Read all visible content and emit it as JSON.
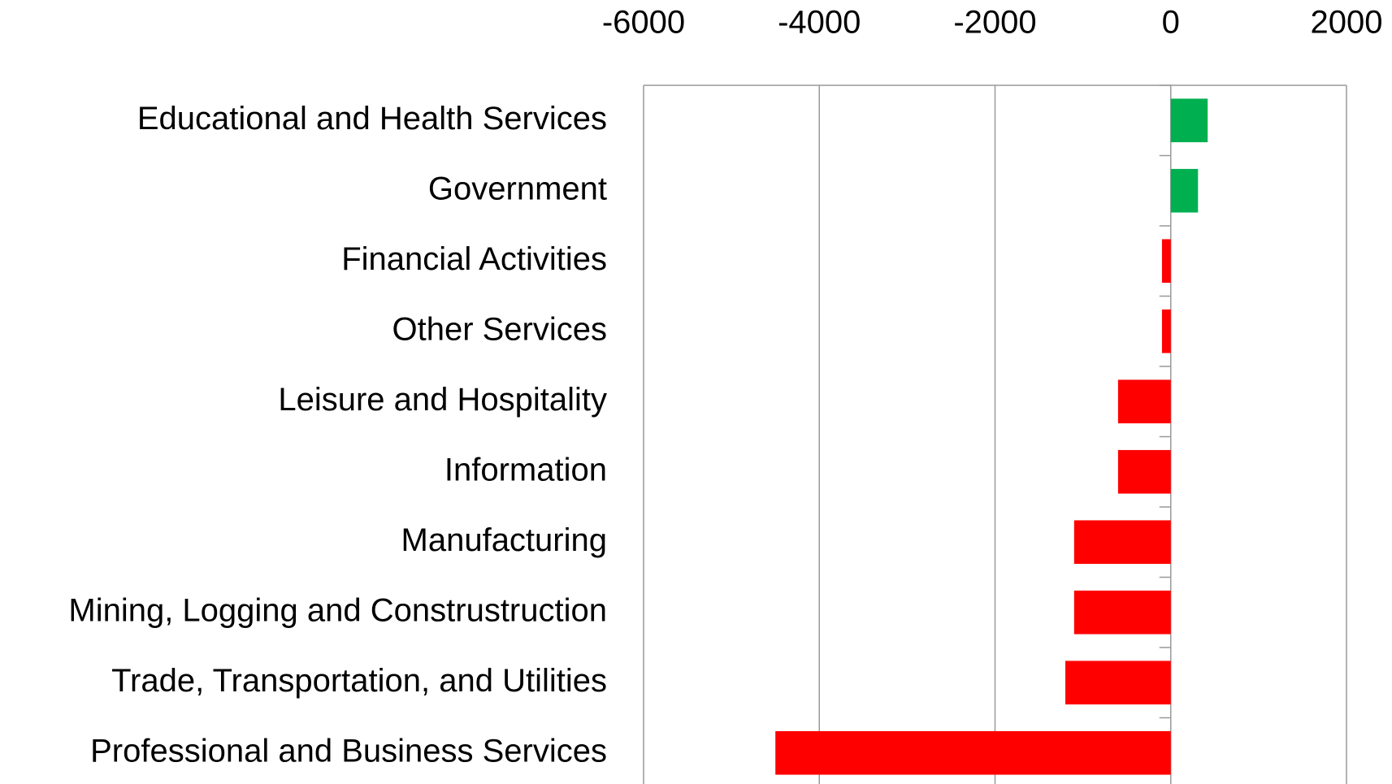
{
  "chart_data": {
    "type": "bar",
    "orientation": "horizontal",
    "categories": [
      "Educational and Health Services",
      "Government",
      "Financial Activities",
      "Other Services",
      "Leisure and Hospitality",
      "Information",
      "Manufacturing",
      "Mining, Logging and Construstruction",
      "Trade, Transportation, and Utilities",
      "Professional and Business Services"
    ],
    "values": [
      420,
      310,
      -100,
      -100,
      -600,
      -600,
      -1100,
      -1100,
      -1200,
      -4500
    ],
    "colors": [
      "#00b050",
      "#00b050",
      "#ff0000",
      "#ff0000",
      "#ff0000",
      "#ff0000",
      "#ff0000",
      "#ff0000",
      "#ff0000",
      "#ff0000"
    ],
    "xlim": [
      -6000,
      2000
    ],
    "xticks": [
      -6000,
      -4000,
      -2000,
      0,
      2000
    ],
    "grid": true,
    "x_axis_position": "top"
  }
}
